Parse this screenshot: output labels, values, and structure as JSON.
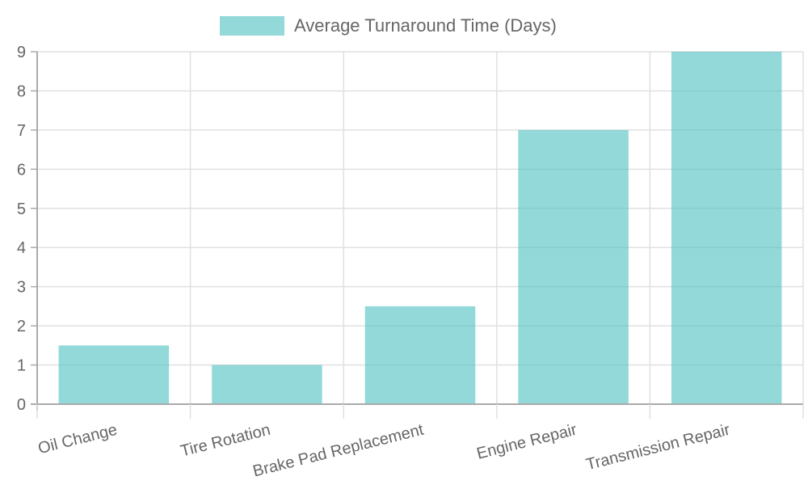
{
  "colors": {
    "bar_fill": "#4bc0c0",
    "bar_fill_opacity": 0.6,
    "grid": "#e0e0e0",
    "axis": "#aaaaaa",
    "text": "#666666"
  },
  "chart_data": {
    "type": "bar",
    "categories": [
      "Oil Change",
      "Tire Rotation",
      "Brake Pad Replacement",
      "Engine Repair",
      "Transmission Repair"
    ],
    "series": [
      {
        "name": "Average Turnaround Time (Days)",
        "values": [
          1.5,
          1,
          2.5,
          7,
          9
        ]
      }
    ],
    "title": "",
    "xlabel": "",
    "ylabel": "",
    "ylim": [
      0,
      9
    ],
    "yticks": [
      "0",
      "1",
      "2",
      "3",
      "4",
      "5",
      "6",
      "7",
      "8",
      "9"
    ],
    "grid": true,
    "legend_position": "top-center"
  }
}
